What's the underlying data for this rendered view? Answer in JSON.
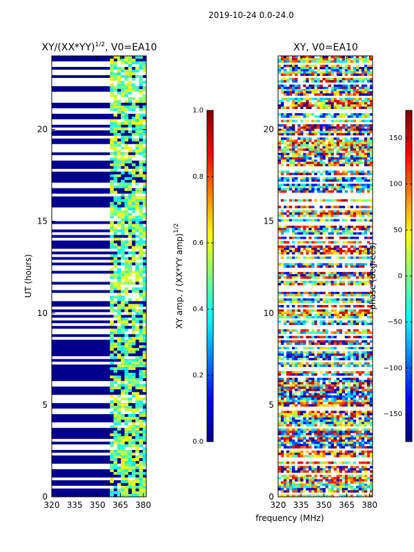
{
  "figure": {
    "suptitle": "2019-10-24 0.0-24.0",
    "shared_xlabel": "frequency (MHz)"
  },
  "chart_data": [
    {
      "type": "heatmap",
      "title": "XY/(XX*YY)^1/2, V0=EA10",
      "title_main": "XY/(XX*YY)",
      "title_sup": "1/2",
      "title_tail": ", V0=EA10",
      "ylabel": "UT (hours)",
      "xlim": [
        320,
        382
      ],
      "ylim": [
        0,
        24
      ],
      "xticks": [
        320,
        335,
        350,
        365,
        380
      ],
      "yticks": [
        0,
        5,
        10,
        15,
        20
      ],
      "colorbar": {
        "label": "XY amp. / (XX*YY amp)^1/2",
        "label_main": "XY amp. / (XX*YY amp)",
        "label_sup": "1/2",
        "range": [
          0.0,
          1.0
        ],
        "ticks": [
          "0.0",
          "0.2",
          "0.4",
          "0.6",
          "0.8",
          "1.0"
        ],
        "tick_values": [
          0.0,
          0.2,
          0.4,
          0.6,
          0.8,
          1.0
        ],
        "colormap": "jet"
      }
    },
    {
      "type": "heatmap",
      "title": "XY, V0=EA10",
      "ylabel": "",
      "xlim": [
        320,
        382
      ],
      "ylim": [
        0,
        24
      ],
      "xticks": [
        320,
        335,
        350,
        365,
        380
      ],
      "yticks": [
        0,
        5,
        10,
        15,
        20
      ],
      "colorbar": {
        "label": "phase (degrees)",
        "range": [
          -180,
          180
        ],
        "ticks": [
          "−150",
          "−100",
          "−50",
          "0",
          "50",
          "100",
          "150"
        ],
        "tick_values": [
          -150,
          -100,
          -50,
          0,
          50,
          100,
          150
        ],
        "colormap": "jet"
      }
    }
  ]
}
